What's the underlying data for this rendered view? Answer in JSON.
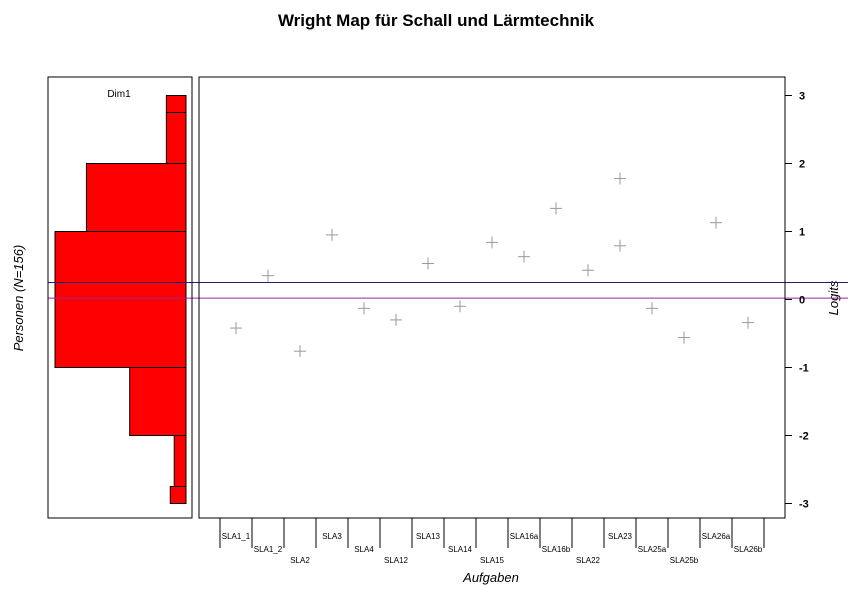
{
  "chart_data": {
    "type": "wright-map",
    "title": "Wright Map für Schall und Lärmtechnik",
    "left_panel": {
      "type": "histogram",
      "label": "Dim1",
      "ylabel": "Personen (N=156)",
      "bar_color": "#ff0000",
      "bins": [
        {
          "from": 2.75,
          "to": 3.0,
          "relative_width": 0.15
        },
        {
          "from": 2.0,
          "to": 2.75,
          "relative_width": 0.15
        },
        {
          "from": 1.0,
          "to": 2.0,
          "relative_width": 0.76
        },
        {
          "from": -1.0,
          "to": 1.0,
          "relative_width": 1.0
        },
        {
          "from": -2.0,
          "to": -1.0,
          "relative_width": 0.43
        },
        {
          "from": -2.75,
          "to": -2.0,
          "relative_width": 0.09
        },
        {
          "from": -3.0,
          "to": -2.75,
          "relative_width": 0.12
        }
      ]
    },
    "right_panel": {
      "type": "scatter",
      "xlabel": "Aufgaben",
      "ylabel": "Logits",
      "ylim": [
        -3,
        3
      ],
      "yticks": [
        "-3",
        "-2",
        "-1",
        "0",
        "1",
        "2",
        "3"
      ],
      "marker": "+",
      "marker_color": "#999999",
      "items": [
        {
          "label": "SLA1_1",
          "value": -0.42
        },
        {
          "label": "SLA1_2",
          "value": 0.35
        },
        {
          "label": "SLA2",
          "value": -0.76
        },
        {
          "label": "SLA3",
          "value": 0.95
        },
        {
          "label": "SLA4",
          "value": -0.13
        },
        {
          "label": "SLA12",
          "value": -0.3
        },
        {
          "label": "SLA13",
          "value": 0.53
        },
        {
          "label": "SLA14",
          "value": -0.1
        },
        {
          "label": "SLA15",
          "value": 0.84
        },
        {
          "label": "SLA16a",
          "value": 0.63
        },
        {
          "label": "SLA16b",
          "value": 1.34
        },
        {
          "label": "SLA22",
          "value": 0.43
        },
        {
          "label": "SLA23",
          "values": [
            1.78,
            0.79
          ]
        },
        {
          "label": "SLA25a",
          "value": -0.13
        },
        {
          "label": "SLA25b",
          "value": -0.56
        },
        {
          "label": "SLA26a",
          "value": 1.13
        },
        {
          "label": "SLA26b",
          "value": -0.34
        }
      ]
    },
    "reference_lines": [
      {
        "value": 0.25,
        "color": "#1f1f7a"
      },
      {
        "value": 0.02,
        "color": "#a020a0"
      }
    ]
  }
}
